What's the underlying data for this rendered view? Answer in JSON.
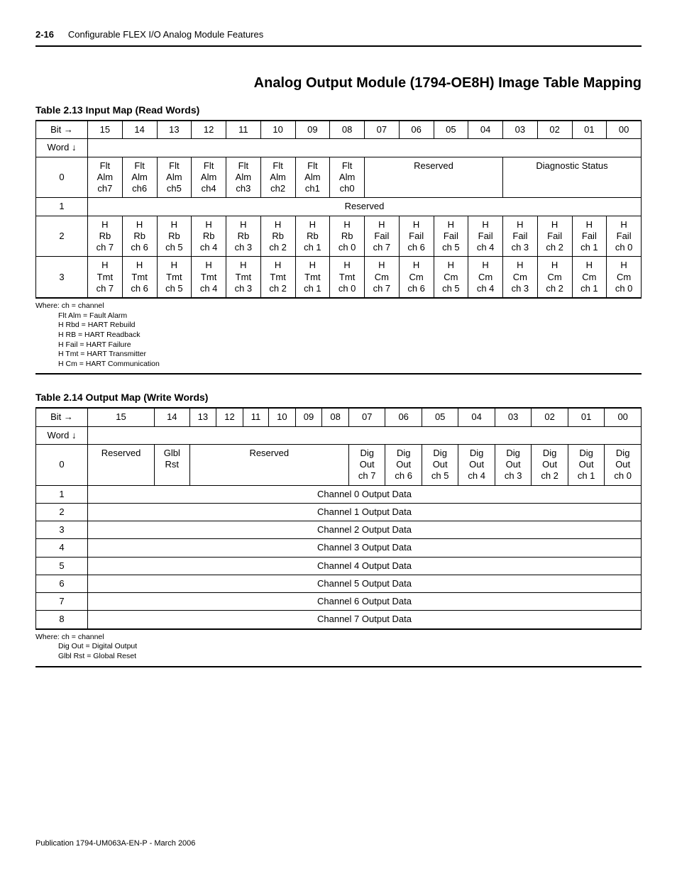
{
  "header": {
    "page_num": "2-16",
    "title": "Configurable FLEX I/O Analog Module Features"
  },
  "main_title": "Analog Output Module (1794-OE8H) Image Table Mapping",
  "table1": {
    "caption": "Table 2.13 Input Map (Read Words)",
    "bit_label": "Bit →",
    "word_label": "Word ↓",
    "bits": [
      "15",
      "14",
      "13",
      "12",
      "11",
      "10",
      "09",
      "08",
      "07",
      "06",
      "05",
      "04",
      "03",
      "02",
      "01",
      "00"
    ],
    "row0_word": "0",
    "row0_flt": [
      "Flt\nAlm\nch7",
      "Flt\nAlm\nch6",
      "Flt\nAlm\nch5",
      "Flt\nAlm\nch4",
      "Flt\nAlm\nch3",
      "Flt\nAlm\nch2",
      "Flt\nAlm\nch1",
      "Flt\nAlm\nch0"
    ],
    "row0_reserved": "Reserved",
    "row0_diag": "Diagnostic Status",
    "row1_word": "1",
    "row1_text": "Reserved",
    "row2_word": "2",
    "row2_cells": [
      "H\nRb\nch 7",
      "H\nRb\nch 6",
      "H\nRb\nch 5",
      "H\nRb\nch 4",
      "H\nRb\nch 3",
      "H\nRb\nch 2",
      "H\nRb\nch 1",
      "H\nRb\nch 0",
      "H\nFail\nch 7",
      "H\nFail\nch 6",
      "H\nFail\nch 5",
      "H\nFail\nch 4",
      "H\nFail\nch 3",
      "H\nFail\nch 2",
      "H\nFail\nch 1",
      "H\nFail\nch 0"
    ],
    "row3_word": "3",
    "row3_cells": [
      "H\nTmt\nch 7",
      "H\nTmt\nch 6",
      "H\nTmt\nch 5",
      "H\nTmt\nch 4",
      "H\nTmt\nch 3",
      "H\nTmt\nch 2",
      "H\nTmt\nch 1",
      "H\nTmt\nch 0",
      "H\nCm\nch 7",
      "H\nCm\nch 6",
      "H\nCm\nch 5",
      "H\nCm\nch 4",
      "H\nCm\nch 3",
      "H\nCm\nch 2",
      "H\nCm\nch 1",
      "H\nCm\nch 0"
    ],
    "legend_where": "Where:",
    "legend_lines": [
      "ch = channel",
      "Flt Alm = Fault Alarm",
      "H Rbd = HART Rebuild",
      "H RB = HART Readback",
      "H Fail = HART Failure",
      "H Tmt = HART Transmitter",
      "H Cm = HART Communication"
    ]
  },
  "table2": {
    "caption": "Table 2.14 Output Map (Write Words)",
    "bit_label": "Bit →",
    "word_label": "Word ↓",
    "bits": [
      "15",
      "14",
      "13",
      "12",
      "11",
      "10",
      "09",
      "08",
      "07",
      "06",
      "05",
      "04",
      "03",
      "02",
      "01",
      "00"
    ],
    "row0_word": "0",
    "row0_reserved1": "Reserved",
    "row0_glbl": "Glbl\nRst",
    "row0_reserved2": "Reserved",
    "row0_dig": [
      "Dig\nOut\nch 7",
      "Dig\nOut\nch 6",
      "Dig\nOut\nch 5",
      "Dig\nOut\nch 4",
      "Dig\nOut\nch 3",
      "Dig\nOut\nch 2",
      "Dig\nOut\nch 1",
      "Dig\nOut\nch 0"
    ],
    "rows": [
      {
        "word": "1",
        "text": "Channel 0 Output Data"
      },
      {
        "word": "2",
        "text": "Channel 1 Output Data"
      },
      {
        "word": "3",
        "text": "Channel 2 Output Data"
      },
      {
        "word": "4",
        "text": "Channel 3 Output Data"
      },
      {
        "word": "5",
        "text": "Channel 4 Output Data"
      },
      {
        "word": "6",
        "text": "Channel 5 Output Data"
      },
      {
        "word": "7",
        "text": "Channel 6 Output Data"
      },
      {
        "word": "8",
        "text": "Channel 7 Output Data"
      }
    ],
    "legend_where": "Where:",
    "legend_lines": [
      "ch = channel",
      "Dig Out = Digital Output",
      "Glbl Rst = Global Reset"
    ]
  },
  "footer": "Publication 1794-UM063A-EN-P - March 2006"
}
